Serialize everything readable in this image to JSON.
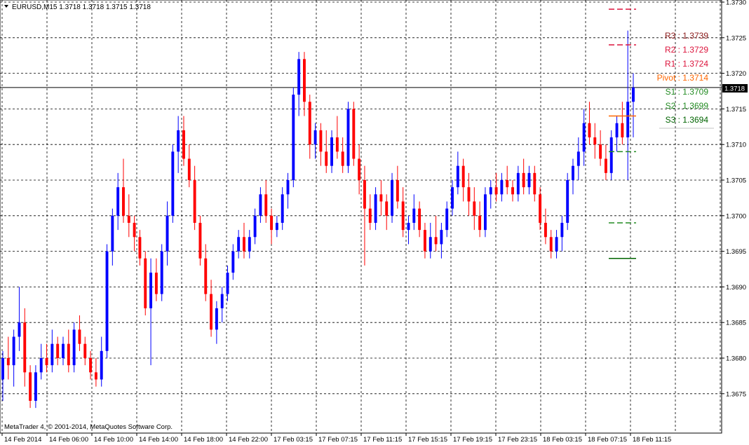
{
  "header": {
    "symbol_line": "EURUSD,M15  1.3718 1.3718 1.3715 1.3718"
  },
  "footer": {
    "copyright": "MetaTrader 4, © 2001-2014, MetaQuotes Software Corp."
  },
  "price_axis": {
    "current_price_label": "1.3718",
    "ticks": [
      "1.3730",
      "1.3725",
      "1.3720",
      "1.3715",
      "1.3710",
      "1.3705",
      "1.3700",
      "1.3695",
      "1.3690",
      "1.3685",
      "1.3680",
      "1.3675"
    ]
  },
  "time_axis": {
    "ticks": [
      "14 Feb 2014",
      "14 Feb 06:00",
      "14 Feb 10:00",
      "14 Feb 14:00",
      "14 Feb 18:00",
      "14 Feb 22:00",
      "17 Feb 03:15",
      "17 Feb 07:15",
      "17 Feb 11:15",
      "17 Feb 15:15",
      "17 Feb 19:15",
      "17 Feb 23:15",
      "18 Feb 03:15",
      "18 Feb 07:15",
      "18 Feb 11:15"
    ]
  },
  "pivots": [
    {
      "label": "R3",
      "value": "1.3739",
      "color": "#8b1a1a"
    },
    {
      "label": "R2",
      "value": "1.3729",
      "color": "#dc143c"
    },
    {
      "label": "R1",
      "value": "1.3724",
      "color": "#dc143c"
    },
    {
      "label": "Pivot",
      "value": "1.3714",
      "color": "#ff6600"
    },
    {
      "label": "S1",
      "value": "1.3709",
      "color": "#228b22"
    },
    {
      "label": "S2",
      "value": "1.3699",
      "color": "#228b22"
    },
    {
      "label": "S3",
      "value": "1.3694",
      "color": "#006400"
    }
  ],
  "colors": {
    "bull": "#0000ff",
    "bear": "#ff0000",
    "grid": "#000000",
    "price_line": "#000000",
    "price_label_bg": "#000000"
  },
  "chart_data": {
    "type": "candlestick",
    "symbol": "EURUSD",
    "timeframe": "M15",
    "ylim": [
      1.3671,
      1.373
    ],
    "grid": true,
    "current_price": 1.3718,
    "last_bar": {
      "open": 1.3718,
      "high": 1.3718,
      "low": 1.3715,
      "close": 1.3718
    },
    "x_tick_labels": [
      "14 Feb 2014",
      "14 Feb 06:00",
      "14 Feb 10:00",
      "14 Feb 14:00",
      "14 Feb 18:00",
      "14 Feb 22:00",
      "17 Feb 03:15",
      "17 Feb 07:15",
      "17 Feb 11:15",
      "17 Feb 15:15",
      "17 Feb 19:15",
      "17 Feb 23:15",
      "18 Feb 03:15",
      "18 Feb 07:15",
      "18 Feb 11:15"
    ],
    "y_tick_labels": [
      1.373,
      1.3725,
      1.372,
      1.3715,
      1.371,
      1.3705,
      1.37,
      1.3695,
      1.369,
      1.3685,
      1.368,
      1.3675
    ],
    "pivot_levels": {
      "R3": 1.3739,
      "R2": 1.3729,
      "R1": 1.3724,
      "Pivot": 1.3714,
      "S1": 1.3709,
      "S2": 1.3699,
      "S3": 1.3694
    },
    "bars": [
      [
        1.3677,
        1.3681,
        1.3674,
        1.368
      ],
      [
        1.368,
        1.3683,
        1.3677,
        1.3679
      ],
      [
        1.3679,
        1.3684,
        1.3676,
        1.3683
      ],
      [
        1.3683,
        1.369,
        1.3681,
        1.3685
      ],
      [
        1.3685,
        1.3687,
        1.3676,
        1.3678
      ],
      [
        1.3678,
        1.3679,
        1.3673,
        1.3674
      ],
      [
        1.3674,
        1.3679,
        1.3673,
        1.3678
      ],
      [
        1.3678,
        1.3682,
        1.3677,
        1.368
      ],
      [
        1.368,
        1.3682,
        1.3678,
        1.3679
      ],
      [
        1.3679,
        1.3684,
        1.3678,
        1.3682
      ],
      [
        1.3682,
        1.3683,
        1.3679,
        1.368
      ],
      [
        1.368,
        1.3683,
        1.3679,
        1.3682
      ],
      [
        1.3682,
        1.3684,
        1.3678,
        1.3679
      ],
      [
        1.3679,
        1.3685,
        1.3678,
        1.3684
      ],
      [
        1.3684,
        1.3686,
        1.3681,
        1.3682
      ],
      [
        1.3682,
        1.3683,
        1.3679,
        1.368
      ],
      [
        1.368,
        1.3681,
        1.3677,
        1.3678
      ],
      [
        1.3678,
        1.368,
        1.3676,
        1.3677
      ],
      [
        1.3677,
        1.3683,
        1.3676,
        1.3681
      ],
      [
        1.3681,
        1.3696,
        1.368,
        1.3695
      ],
      [
        1.3695,
        1.3701,
        1.3693,
        1.37
      ],
      [
        1.37,
        1.3706,
        1.3698,
        1.3704
      ],
      [
        1.3704,
        1.3708,
        1.3699,
        1.37
      ],
      [
        1.37,
        1.3703,
        1.3697,
        1.3699
      ],
      [
        1.3699,
        1.37,
        1.3695,
        1.3697
      ],
      [
        1.3697,
        1.3698,
        1.3693,
        1.3694
      ],
      [
        1.3694,
        1.3695,
        1.3686,
        1.3687
      ],
      [
        1.3687,
        1.3694,
        1.3679,
        1.3692
      ],
      [
        1.3692,
        1.3694,
        1.3688,
        1.3689
      ],
      [
        1.3689,
        1.3696,
        1.3688,
        1.3695
      ],
      [
        1.3695,
        1.3702,
        1.3693,
        1.37
      ],
      [
        1.37,
        1.371,
        1.3699,
        1.3709
      ],
      [
        1.3709,
        1.3714,
        1.3706,
        1.3712
      ],
      [
        1.3712,
        1.3714,
        1.3707,
        1.3708
      ],
      [
        1.3708,
        1.371,
        1.3704,
        1.3705
      ],
      [
        1.3705,
        1.3707,
        1.3698,
        1.3699
      ],
      [
        1.3699,
        1.37,
        1.3693,
        1.3694
      ],
      [
        1.3694,
        1.3696,
        1.3688,
        1.3689
      ],
      [
        1.3689,
        1.3691,
        1.3683,
        1.3684
      ],
      [
        1.3684,
        1.3688,
        1.3682,
        1.3687
      ],
      [
        1.3687,
        1.369,
        1.3685,
        1.3689
      ],
      [
        1.3689,
        1.3693,
        1.3688,
        1.3692
      ],
      [
        1.3692,
        1.3696,
        1.3691,
        1.3695
      ],
      [
        1.3695,
        1.3698,
        1.3694,
        1.3697
      ],
      [
        1.3697,
        1.3699,
        1.3694,
        1.3695
      ],
      [
        1.3695,
        1.3698,
        1.3694,
        1.3697
      ],
      [
        1.3697,
        1.3701,
        1.3696,
        1.37
      ],
      [
        1.37,
        1.3704,
        1.3699,
        1.3703
      ],
      [
        1.3703,
        1.3705,
        1.3699,
        1.37
      ],
      [
        1.37,
        1.3701,
        1.3696,
        1.3698
      ],
      [
        1.3698,
        1.37,
        1.3697,
        1.3699
      ],
      [
        1.3699,
        1.3704,
        1.3698,
        1.3703
      ],
      [
        1.3703,
        1.3706,
        1.3701,
        1.3705
      ],
      [
        1.3705,
        1.3718,
        1.3704,
        1.3717
      ],
      [
        1.3717,
        1.3723,
        1.3714,
        1.3722
      ],
      [
        1.3722,
        1.3723,
        1.3714,
        1.3716
      ],
      [
        1.3716,
        1.3717,
        1.3708,
        1.371
      ],
      [
        1.371,
        1.3713,
        1.3708,
        1.3712
      ],
      [
        1.3712,
        1.3713,
        1.3707,
        1.3709
      ],
      [
        1.3709,
        1.3712,
        1.3706,
        1.3707
      ],
      [
        1.3707,
        1.3712,
        1.3706,
        1.3711
      ],
      [
        1.3711,
        1.3714,
        1.3708,
        1.3709
      ],
      [
        1.3709,
        1.3711,
        1.3706,
        1.3707
      ],
      [
        1.3707,
        1.3716,
        1.3706,
        1.3715
      ],
      [
        1.3715,
        1.3716,
        1.3707,
        1.3708
      ],
      [
        1.3708,
        1.371,
        1.3703,
        1.3705
      ],
      [
        1.3705,
        1.3707,
        1.3693,
        1.3701
      ],
      [
        1.3701,
        1.3703,
        1.3698,
        1.3699
      ],
      [
        1.3699,
        1.3704,
        1.3698,
        1.3703
      ],
      [
        1.3703,
        1.3705,
        1.37,
        1.3702
      ],
      [
        1.3702,
        1.3703,
        1.3698,
        1.37
      ],
      [
        1.37,
        1.3706,
        1.3699,
        1.3705
      ],
      [
        1.3705,
        1.3707,
        1.3701,
        1.3702
      ],
      [
        1.3702,
        1.3704,
        1.3697,
        1.3698
      ],
      [
        1.3698,
        1.37,
        1.3696,
        1.3699
      ],
      [
        1.3699,
        1.3703,
        1.3698,
        1.3701
      ],
      [
        1.3701,
        1.3702,
        1.3697,
        1.3698
      ],
      [
        1.3698,
        1.3699,
        1.3694,
        1.3695
      ],
      [
        1.3695,
        1.3699,
        1.3694,
        1.3697
      ],
      [
        1.3697,
        1.37,
        1.3695,
        1.3696
      ],
      [
        1.3696,
        1.3699,
        1.3694,
        1.3698
      ],
      [
        1.3698,
        1.3702,
        1.3697,
        1.3701
      ],
      [
        1.3701,
        1.3705,
        1.37,
        1.3704
      ],
      [
        1.3704,
        1.3709,
        1.3703,
        1.3707
      ],
      [
        1.3707,
        1.3708,
        1.3702,
        1.3704
      ],
      [
        1.3704,
        1.3706,
        1.37,
        1.3702
      ],
      [
        1.3702,
        1.3704,
        1.3698,
        1.37
      ],
      [
        1.37,
        1.3702,
        1.3697,
        1.3698
      ],
      [
        1.3698,
        1.3704,
        1.3697,
        1.3703
      ],
      [
        1.3703,
        1.3705,
        1.3701,
        1.3704
      ],
      [
        1.3704,
        1.3706,
        1.3702,
        1.3703
      ],
      [
        1.3703,
        1.3706,
        1.3702,
        1.3705
      ],
      [
        1.3705,
        1.3707,
        1.3703,
        1.3704
      ],
      [
        1.3704,
        1.3705,
        1.3702,
        1.3703
      ],
      [
        1.3703,
        1.3707,
        1.3702,
        1.3706
      ],
      [
        1.3706,
        1.3708,
        1.3703,
        1.3704
      ],
      [
        1.3704,
        1.3707,
        1.3703,
        1.3706
      ],
      [
        1.3706,
        1.3707,
        1.3702,
        1.3703
      ],
      [
        1.3703,
        1.3704,
        1.3698,
        1.3699
      ],
      [
        1.3699,
        1.3701,
        1.3696,
        1.3697
      ],
      [
        1.3697,
        1.3698,
        1.3694,
        1.3695
      ],
      [
        1.3695,
        1.3698,
        1.3694,
        1.3697
      ],
      [
        1.3697,
        1.37,
        1.3695,
        1.3699
      ],
      [
        1.3699,
        1.3706,
        1.3698,
        1.3705
      ],
      [
        1.3705,
        1.3708,
        1.3703,
        1.3707
      ],
      [
        1.3707,
        1.3711,
        1.3705,
        1.3709
      ],
      [
        1.3709,
        1.3715,
        1.3707,
        1.3713
      ],
      [
        1.3713,
        1.3716,
        1.371,
        1.3711
      ],
      [
        1.3711,
        1.3713,
        1.3708,
        1.371
      ],
      [
        1.371,
        1.3712,
        1.3707,
        1.3708
      ],
      [
        1.3708,
        1.371,
        1.3705,
        1.3706
      ],
      [
        1.3706,
        1.3712,
        1.3705,
        1.3711
      ],
      [
        1.3711,
        1.3714,
        1.3709,
        1.3713
      ],
      [
        1.3713,
        1.3716,
        1.371,
        1.3711
      ],
      [
        1.3711,
        1.3726,
        1.3705,
        1.3716
      ],
      [
        1.3716,
        1.372,
        1.3711,
        1.3718
      ]
    ]
  }
}
